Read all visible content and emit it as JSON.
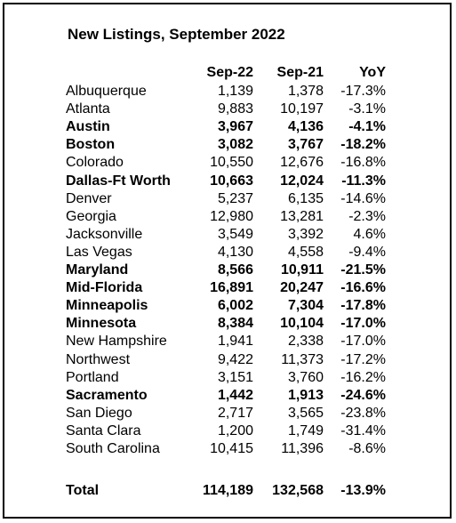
{
  "title": "New Listings, September 2022",
  "columns": {
    "name": "",
    "c1": "Sep-22",
    "c2": "Sep-21",
    "c3": "YoY"
  },
  "rows": [
    {
      "name": "Albuquerque",
      "c1": "1,139",
      "c2": "1,378",
      "c3": "-17.3%",
      "bold": false
    },
    {
      "name": "Atlanta",
      "c1": "9,883",
      "c2": "10,197",
      "c3": "-3.1%",
      "bold": false
    },
    {
      "name": "Austin",
      "c1": "3,967",
      "c2": "4,136",
      "c3": "-4.1%",
      "bold": true
    },
    {
      "name": "Boston",
      "c1": "3,082",
      "c2": "3,767",
      "c3": "-18.2%",
      "bold": true
    },
    {
      "name": "Colorado",
      "c1": "10,550",
      "c2": "12,676",
      "c3": "-16.8%",
      "bold": false
    },
    {
      "name": "Dallas-Ft Worth",
      "c1": "10,663",
      "c2": "12,024",
      "c3": "-11.3%",
      "bold": true
    },
    {
      "name": "Denver",
      "c1": "5,237",
      "c2": "6,135",
      "c3": "-14.6%",
      "bold": false
    },
    {
      "name": "Georgia",
      "c1": "12,980",
      "c2": "13,281",
      "c3": "-2.3%",
      "bold": false
    },
    {
      "name": "Jacksonville",
      "c1": "3,549",
      "c2": "3,392",
      "c3": "4.6%",
      "bold": false
    },
    {
      "name": "Las Vegas",
      "c1": "4,130",
      "c2": "4,558",
      "c3": "-9.4%",
      "bold": false
    },
    {
      "name": "Maryland",
      "c1": "8,566",
      "c2": "10,911",
      "c3": "-21.5%",
      "bold": true
    },
    {
      "name": "Mid-Florida",
      "c1": "16,891",
      "c2": "20,247",
      "c3": "-16.6%",
      "bold": true
    },
    {
      "name": "Minneapolis",
      "c1": "6,002",
      "c2": "7,304",
      "c3": "-17.8%",
      "bold": true
    },
    {
      "name": "Minnesota",
      "c1": "8,384",
      "c2": "10,104",
      "c3": "-17.0%",
      "bold": true
    },
    {
      "name": "New Hampshire",
      "c1": "1,941",
      "c2": "2,338",
      "c3": "-17.0%",
      "bold": false
    },
    {
      "name": "Northwest",
      "c1": "9,422",
      "c2": "11,373",
      "c3": "-17.2%",
      "bold": false
    },
    {
      "name": "Portland",
      "c1": "3,151",
      "c2": "3,760",
      "c3": "-16.2%",
      "bold": false
    },
    {
      "name": "Sacramento",
      "c1": "1,442",
      "c2": "1,913",
      "c3": "-24.6%",
      "bold": true
    },
    {
      "name": "San Diego",
      "c1": "2,717",
      "c2": "3,565",
      "c3": "-23.8%",
      "bold": false
    },
    {
      "name": "Santa Clara",
      "c1": "1,200",
      "c2": "1,749",
      "c3": "-31.4%",
      "bold": false
    },
    {
      "name": "South Carolina",
      "c1": "10,415",
      "c2": "11,396",
      "c3": "-8.6%",
      "bold": false
    }
  ],
  "total": {
    "name": "Total",
    "c1": "114,189",
    "c2": "132,568",
    "c3": "-13.9%"
  }
}
